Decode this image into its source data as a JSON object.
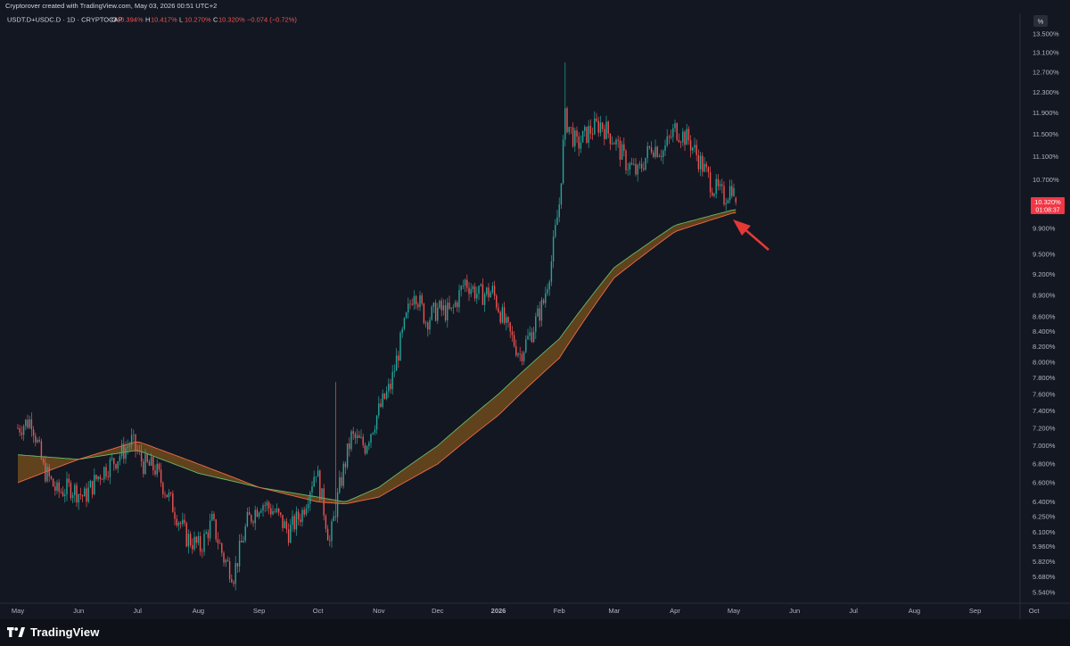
{
  "header": {
    "credit": "Cryptorover created with TradingView.com, May 03, 2026 00:51 UTC+2",
    "symbol": "USDT.D+USDC.D · 1D · CRYPTOCAP",
    "ohlc": [
      {
        "key": "O",
        "value": "10.394%"
      },
      {
        "key": "H",
        "value": "10.417%"
      },
      {
        "key": "L",
        "value": "10.270%"
      },
      {
        "key": "C",
        "value": "10.320%"
      }
    ],
    "change": "−0.074 (−0.72%)"
  },
  "axis": {
    "unit_label": "%",
    "price_tag": "10.320%",
    "countdown": "01:08:37"
  },
  "footer": {
    "brand": "TradingView"
  },
  "colors": {
    "background": "#131722",
    "up": "#26a69a",
    "down": "#ef5350",
    "band_fill": "#6e4a1c",
    "band_fast_line": "#66bb6a",
    "band_slow_line": "#ef6c45",
    "arrow": "#e53935",
    "price_tag": "#f23645"
  },
  "chart_data": {
    "type": "candlestick",
    "title": "USDT.D+USDC.D · 1D · CRYPTOCAP",
    "yscale": "log",
    "ylim": [
      5.5,
      13.9
    ],
    "y_ticks": [
      "13.500%",
      "13.100%",
      "12.700%",
      "12.300%",
      "11.900%",
      "11.500%",
      "11.100%",
      "10.700%",
      "9.900%",
      "9.500%",
      "9.200%",
      "8.900%",
      "8.600%",
      "8.400%",
      "8.200%",
      "8.000%",
      "7.800%",
      "7.600%",
      "7.400%",
      "7.200%",
      "7.000%",
      "6.800%",
      "6.600%",
      "6.400%",
      "6.250%",
      "6.100%",
      "5.960%",
      "5.820%",
      "5.680%",
      "5.540%"
    ],
    "x_ticks": [
      "May",
      "Jun",
      "Jul",
      "Aug",
      "Sep",
      "Oct",
      "Nov",
      "Dec",
      "2026",
      "Feb",
      "Mar",
      "Apr",
      "May",
      "Jun",
      "Jul",
      "Aug",
      "Sep",
      "Oct"
    ],
    "close_path": [
      [
        "2025-05-01",
        7.2
      ],
      [
        "2025-05-08",
        7.3
      ],
      [
        "2025-05-14",
        6.75
      ],
      [
        "2025-05-21",
        6.5
      ],
      [
        "2025-05-28",
        6.55
      ],
      [
        "2025-06-04",
        6.45
      ],
      [
        "2025-06-12",
        6.7
      ],
      [
        "2025-06-20",
        6.85
      ],
      [
        "2025-06-28",
        7.05
      ],
      [
        "2025-07-04",
        6.8
      ],
      [
        "2025-07-10",
        6.75
      ],
      [
        "2025-07-18",
        6.4
      ],
      [
        "2025-07-26",
        6.05
      ],
      [
        "2025-08-02",
        5.95
      ],
      [
        "2025-08-08",
        6.2
      ],
      [
        "2025-08-14",
        5.85
      ],
      [
        "2025-08-19",
        5.7
      ],
      [
        "2025-08-26",
        6.2
      ],
      [
        "2025-09-02",
        6.4
      ],
      [
        "2025-09-09",
        6.3
      ],
      [
        "2025-09-16",
        6.1
      ],
      [
        "2025-09-23",
        6.3
      ],
      [
        "2025-09-30",
        6.75
      ],
      [
        "2025-10-07",
        6.0
      ],
      [
        "2025-10-12",
        6.55
      ],
      [
        "2025-10-18",
        7.1
      ],
      [
        "2025-10-25",
        7.0
      ],
      [
        "2025-11-01",
        7.4
      ],
      [
        "2025-11-07",
        7.7
      ],
      [
        "2025-11-13",
        8.35
      ],
      [
        "2025-11-19",
        9.0
      ],
      [
        "2025-11-25",
        8.55
      ],
      [
        "2025-12-01",
        8.7
      ],
      [
        "2025-12-08",
        8.65
      ],
      [
        "2025-12-15",
        9.1
      ],
      [
        "2025-12-22",
        8.9
      ],
      [
        "2025-12-29",
        8.95
      ],
      [
        "2026-01-05",
        8.45
      ],
      [
        "2026-01-12",
        8.1
      ],
      [
        "2026-01-18",
        8.4
      ],
      [
        "2026-01-24",
        8.8
      ],
      [
        "2026-01-28",
        9.4
      ],
      [
        "2026-02-01",
        10.3
      ],
      [
        "2026-02-04",
        11.8
      ],
      [
        "2026-02-10",
        11.3
      ],
      [
        "2026-02-16",
        11.55
      ],
      [
        "2026-02-22",
        11.7
      ],
      [
        "2026-03-01",
        11.4
      ],
      [
        "2026-03-07",
        11.0
      ],
      [
        "2026-03-13",
        10.8
      ],
      [
        "2026-03-20",
        11.3
      ],
      [
        "2026-03-26",
        11.2
      ],
      [
        "2026-04-01",
        11.6
      ],
      [
        "2026-04-08",
        11.4
      ],
      [
        "2026-04-14",
        11.0
      ],
      [
        "2026-04-20",
        10.6
      ],
      [
        "2026-04-26",
        10.4
      ],
      [
        "2026-04-30",
        10.6
      ],
      [
        "2026-05-02",
        10.32
      ]
    ],
    "ma_band_fast": [
      [
        "2025-05-01",
        6.9
      ],
      [
        "2025-06-01",
        6.85
      ],
      [
        "2025-07-01",
        6.95
      ],
      [
        "2025-08-01",
        6.7
      ],
      [
        "2025-09-01",
        6.55
      ],
      [
        "2025-10-01",
        6.45
      ],
      [
        "2025-10-15",
        6.4
      ],
      [
        "2025-11-01",
        6.55
      ],
      [
        "2025-12-01",
        7.0
      ],
      [
        "2026-01-01",
        7.6
      ],
      [
        "2026-02-01",
        8.3
      ],
      [
        "2026-03-01",
        9.3
      ],
      [
        "2026-04-01",
        9.95
      ],
      [
        "2026-05-01",
        10.2
      ]
    ],
    "ma_band_slow": [
      [
        "2025-05-01",
        6.6
      ],
      [
        "2025-06-01",
        6.85
      ],
      [
        "2025-07-01",
        7.05
      ],
      [
        "2025-08-01",
        6.8
      ],
      [
        "2025-09-01",
        6.55
      ],
      [
        "2025-10-01",
        6.4
      ],
      [
        "2025-10-15",
        6.38
      ],
      [
        "2025-11-01",
        6.45
      ],
      [
        "2025-12-01",
        6.8
      ],
      [
        "2026-01-01",
        7.35
      ],
      [
        "2026-02-01",
        8.05
      ],
      [
        "2026-03-01",
        9.15
      ],
      [
        "2026-04-01",
        9.85
      ],
      [
        "2026-05-01",
        10.15
      ]
    ]
  }
}
